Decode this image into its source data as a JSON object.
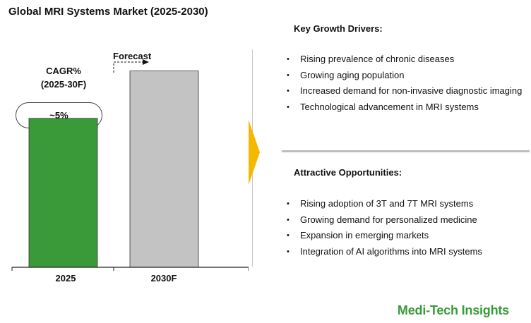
{
  "title": "Global MRI Systems Market (2025-2030)",
  "cagr": {
    "label_line1": "CAGR%",
    "label_line2": "(2025-30F)",
    "value": "~5%"
  },
  "forecast_label": "Forecast",
  "chart_data": {
    "type": "bar",
    "title": "Global MRI Systems Market (2025-2030)",
    "categories": [
      "2025",
      "2030F"
    ],
    "values": [
      0.66,
      0.87
    ],
    "value_scale": "relative (no y-axis printed; values are bar heights as a fraction of the plot height)",
    "colors": [
      "#3a9a3a",
      "#c3c3c3"
    ],
    "xlabel": "",
    "ylabel": "",
    "grid": false,
    "legend": "none"
  },
  "drivers": {
    "heading": "Key Growth Drivers:",
    "items": [
      "Rising prevalence of chronic diseases",
      "Growing aging population",
      "Increased demand for non-invasive diagnostic imaging",
      "Technological advancement in MRI systems"
    ]
  },
  "opportunities": {
    "heading": "Attractive Opportunities:",
    "items": [
      "Rising adoption of 3T and 7T MRI systems",
      "Growing demand for personalized medicine",
      "Expansion in emerging markets",
      "Integration of AI algorithms into MRI systems"
    ]
  },
  "brand": "Medi-Tech Insights",
  "colors": {
    "bar_2025": "#3a9a3a",
    "bar_2030": "#c3c3c3",
    "arrow": "#f5b800",
    "brand": "#3a9a3a"
  }
}
